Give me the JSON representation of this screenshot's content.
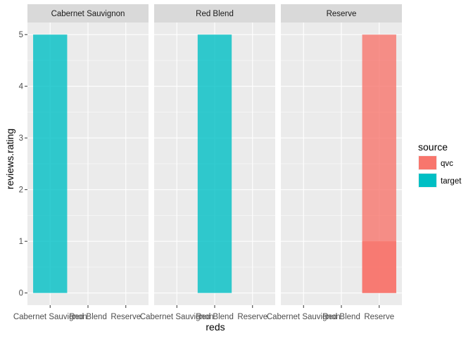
{
  "chart_data": {
    "type": "bar",
    "facet_by": "reds",
    "panels": [
      "Cabernet Sauvignon",
      "Red Blend",
      "Reserve"
    ],
    "categories": [
      "Cabernet Sauvignon",
      "Red Blend",
      "Reserve"
    ],
    "xlabel": "reds",
    "ylabel": "reviews.rating",
    "ylim": [
      0,
      5
    ],
    "yticks": [
      "0",
      "1",
      "2",
      "3",
      "4",
      "5"
    ],
    "legend": {
      "title": "source",
      "placement": "right",
      "entries": [
        {
          "name": "qvc",
          "color": "#F8766D"
        },
        {
          "name": "target",
          "color": "#00BFC4"
        }
      ]
    },
    "bars": [
      {
        "panel": "Cabernet Sauvignon",
        "category": "Cabernet Sauvignon",
        "source": "target",
        "value": 5
      },
      {
        "panel": "Red Blend",
        "category": "Red Blend",
        "source": "target",
        "value": 5
      },
      {
        "panel": "Reserve",
        "category": "Reserve",
        "source": "qvc",
        "value": 5
      },
      {
        "panel": "Reserve",
        "category": "Reserve",
        "source": "qvc",
        "value": 1
      }
    ],
    "bar_opacity": 0.8,
    "grid": true,
    "colors": {
      "panel_bg": "#EBEBEB",
      "strip_bg": "#D9D9D9",
      "grid": "#FFFFFF"
    }
  }
}
